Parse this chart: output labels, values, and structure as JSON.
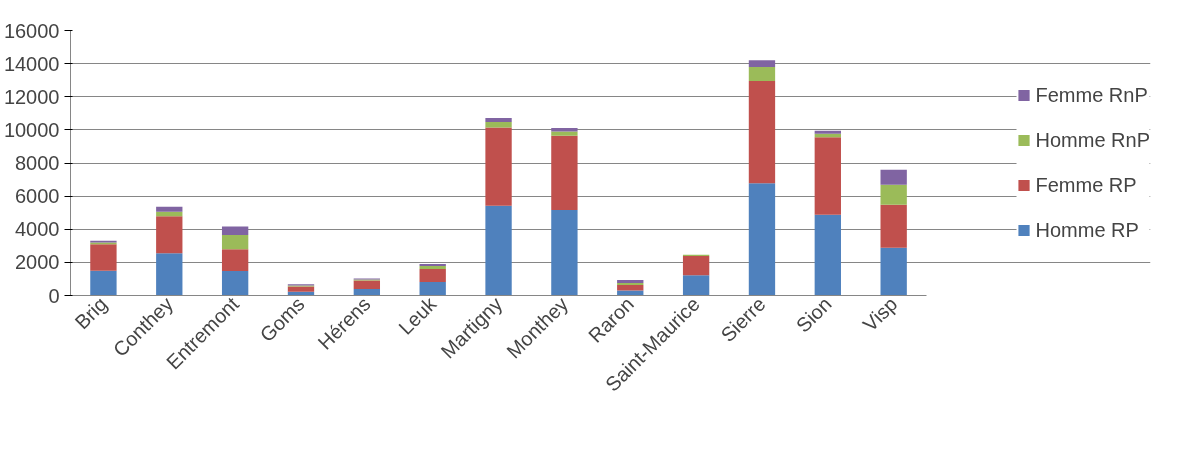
{
  "chart_data": {
    "type": "bar",
    "stacked": true,
    "categories": [
      "Brig",
      "Conthey",
      "Entremont",
      "Goms",
      "Hérens",
      "Leuk",
      "Martigny",
      "Monthey",
      "Raron",
      "Saint-Maurice",
      "Sierre",
      "Sion",
      "Visp"
    ],
    "series": [
      {
        "name": "Homme RP",
        "color": "#4f81bd",
        "values": [
          1500,
          2550,
          1480,
          220,
          400,
          820,
          5420,
          5160,
          300,
          1220,
          6770,
          4880,
          2880
        ]
      },
      {
        "name": "Femme RP",
        "color": "#c0504d",
        "values": [
          1600,
          2230,
          1320,
          320,
          500,
          780,
          4720,
          4480,
          340,
          1160,
          6180,
          4680,
          2600
        ]
      },
      {
        "name": "Homme RnP",
        "color": "#9bbb59",
        "values": [
          100,
          280,
          860,
          60,
          60,
          180,
          340,
          260,
          120,
          80,
          840,
          200,
          1200
        ]
      },
      {
        "name": "Femme RnP",
        "color": "#8064a2",
        "values": [
          100,
          300,
          500,
          80,
          60,
          120,
          240,
          220,
          180,
          0,
          420,
          180,
          920
        ]
      }
    ],
    "ylim": [
      0,
      16000
    ],
    "yticks": [
      0,
      2000,
      4000,
      6000,
      8000,
      10000,
      12000,
      14000,
      16000
    ],
    "grid": "y",
    "legend": "right"
  }
}
